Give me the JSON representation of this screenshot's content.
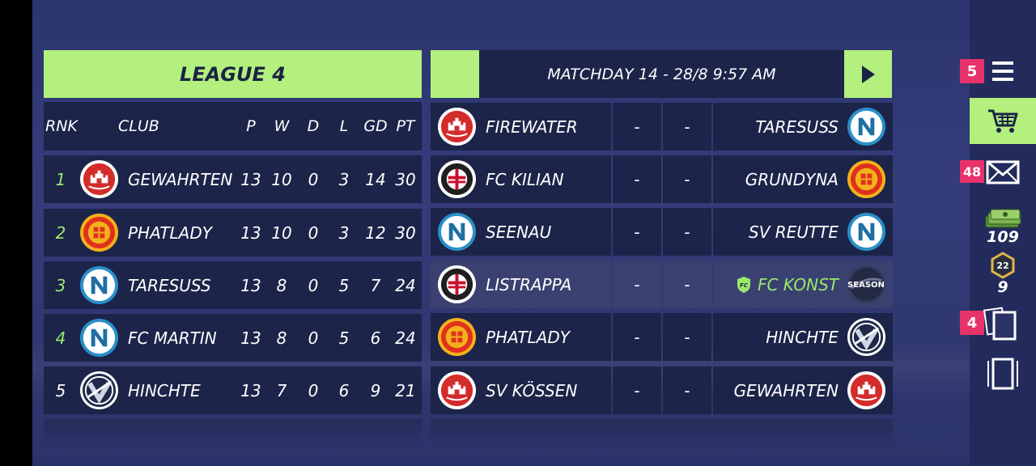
{
  "league": {
    "title": "LEAGUE 4",
    "columns": {
      "rank": "RNK",
      "club": "CLUB",
      "p": "P",
      "w": "W",
      "d": "D",
      "l": "L",
      "gd": "GD",
      "pt": "PT"
    },
    "rows": [
      {
        "rank": "1",
        "club": "GEWAHRTEN",
        "p": "13",
        "w": "10",
        "d": "0",
        "l": "3",
        "gd": "14",
        "pt": "30",
        "crest": "red-castle-crest"
      },
      {
        "rank": "2",
        "club": "PHATLADY",
        "p": "13",
        "w": "10",
        "d": "0",
        "l": "3",
        "gd": "12",
        "pt": "30",
        "crest": "manchester-crest"
      },
      {
        "rank": "3",
        "club": "TARESUSS",
        "p": "13",
        "w": "8",
        "d": "0",
        "l": "5",
        "gd": "7",
        "pt": "24",
        "crest": "n-crest"
      },
      {
        "rank": "4",
        "club": "FC MARTIN",
        "p": "13",
        "w": "8",
        "d": "0",
        "l": "5",
        "gd": "6",
        "pt": "24",
        "crest": "n-crest"
      },
      {
        "rank": "5",
        "club": "HINCHTE",
        "p": "13",
        "w": "7",
        "d": "0",
        "l": "6",
        "gd": "9",
        "pt": "21",
        "crest": "v-crest"
      }
    ]
  },
  "matchday": {
    "title": "MATCHDAY 14 - 28/8 9:57 AM",
    "fixtures": [
      {
        "home": "FIREWATER",
        "home_crest": "red-castle-crest",
        "score_home": "-",
        "score_away": "-",
        "away": "TARESUSS",
        "away_crest": "n-crest"
      },
      {
        "home": "FC KILIAN",
        "home_crest": "milan-crest",
        "score_home": "-",
        "score_away": "-",
        "away": "GRUNDYNA",
        "away_crest": "manchester-crest"
      },
      {
        "home": "SEENAU",
        "home_crest": "n-crest",
        "score_home": "-",
        "score_away": "-",
        "away": "SV REUTTE",
        "away_crest": "n-crest"
      },
      {
        "home": "LISTRAPPA",
        "home_crest": "milan-crest",
        "score_home": "-",
        "score_away": "-",
        "away": "FC KONST",
        "away_crest": "season-crest",
        "own_badge": "FC",
        "away_crest_text": "SEASON"
      },
      {
        "home": "PHATLADY",
        "home_crest": "manchester-crest",
        "score_home": "-",
        "score_away": "-",
        "away": "HINCHTE",
        "away_crest": "v-crest"
      },
      {
        "home": "SV KÖSSEN",
        "home_crest": "red-castle-crest",
        "score_home": "-",
        "score_away": "-",
        "away": "GEWAHRTEN",
        "away_crest": "red-castle-crest"
      }
    ]
  },
  "sidebar": {
    "menu_badge": "5",
    "mail_badge": "48",
    "cash_value": "109",
    "token_level": "22",
    "token_value": "9",
    "cards_badge": "4"
  },
  "colors": {
    "accent_green": "#b3f07e",
    "panel": "#1c2449",
    "badge_pink": "#e8326a",
    "promotion_green": "#9be86d"
  }
}
